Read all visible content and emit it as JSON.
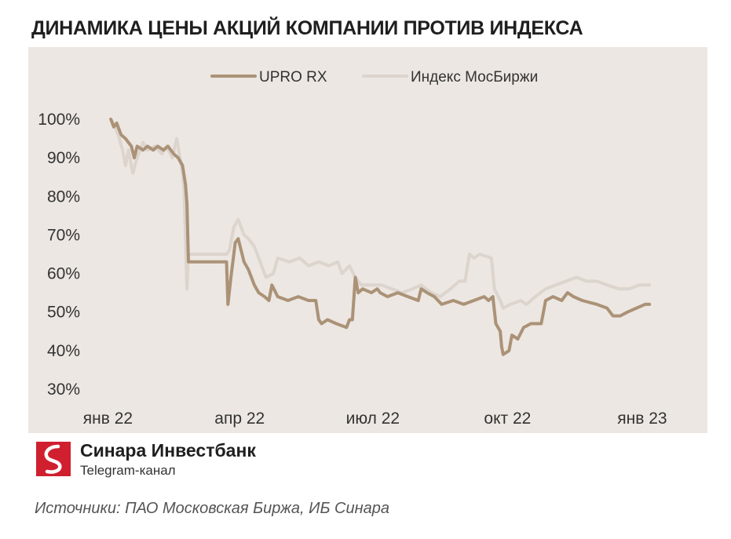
{
  "title": "ДИНАМИКА ЦЕНЫ АКЦИЙ КОМПАНИИ ПРОТИВ ИНДЕКСА",
  "brand": {
    "name": "Синара Инвестбанк",
    "subtitle": "Telegram-канал"
  },
  "source": "Источники: ПАО Московская Биржа, ИБ Синара",
  "colors": {
    "background": "#ece7e2",
    "upro": "#ab9277",
    "index": "#dcd4cd",
    "logo": "#d01f2f"
  },
  "chart_data": {
    "type": "line",
    "title": "ДИНАМИКА ЦЕНЫ АКЦИЙ КОМПАНИИ ПРОТИВ ИНДЕКСА",
    "xlabel": "",
    "ylabel": "",
    "ylim": [
      30,
      100
    ],
    "yticks": [
      "100%",
      "90%",
      "80%",
      "70%",
      "60%",
      "50%",
      "40%",
      "30%"
    ],
    "ytick_values": [
      100,
      90,
      80,
      70,
      60,
      50,
      40,
      30
    ],
    "xticks": [
      "янв 22",
      "апр 22",
      "июл 22",
      "окт 22",
      "янв 23"
    ],
    "xtick_dates": [
      "2022-01-01",
      "2022-04-01",
      "2022-07-01",
      "2022-10-01",
      "2023-01-01"
    ],
    "x_range": [
      "2021-12-28",
      "2023-01-15"
    ],
    "grid": false,
    "legend": "top-center",
    "series": [
      {
        "name": "UPRO RX",
        "points": [
          [
            "2022-01-03",
            100
          ],
          [
            "2022-01-05",
            98
          ],
          [
            "2022-01-07",
            99
          ],
          [
            "2022-01-10",
            96
          ],
          [
            "2022-01-13",
            95
          ],
          [
            "2022-01-17",
            93
          ],
          [
            "2022-01-19",
            90
          ],
          [
            "2022-01-21",
            93
          ],
          [
            "2022-01-25",
            92
          ],
          [
            "2022-01-28",
            93
          ],
          [
            "2022-02-01",
            92
          ],
          [
            "2022-02-04",
            93
          ],
          [
            "2022-02-08",
            92
          ],
          [
            "2022-02-11",
            93
          ],
          [
            "2022-02-15",
            91
          ],
          [
            "2022-02-18",
            90
          ],
          [
            "2022-02-21",
            88
          ],
          [
            "2022-02-23",
            83
          ],
          [
            "2022-02-24",
            78
          ],
          [
            "2022-02-25",
            63
          ],
          [
            "2022-03-23",
            63
          ],
          [
            "2022-03-24",
            52
          ],
          [
            "2022-03-26",
            59
          ],
          [
            "2022-03-29",
            68
          ],
          [
            "2022-03-31",
            69
          ],
          [
            "2022-04-04",
            63
          ],
          [
            "2022-04-07",
            61
          ],
          [
            "2022-04-11",
            57
          ],
          [
            "2022-04-14",
            55
          ],
          [
            "2022-04-18",
            54
          ],
          [
            "2022-04-21",
            53
          ],
          [
            "2022-04-23",
            57
          ],
          [
            "2022-04-27",
            54
          ],
          [
            "2022-05-04",
            53
          ],
          [
            "2022-05-11",
            54
          ],
          [
            "2022-05-18",
            53
          ],
          [
            "2022-05-23",
            53
          ],
          [
            "2022-05-25",
            48
          ],
          [
            "2022-05-27",
            47
          ],
          [
            "2022-05-31",
            48
          ],
          [
            "2022-06-06",
            47
          ],
          [
            "2022-06-13",
            46
          ],
          [
            "2022-06-15",
            48
          ],
          [
            "2022-06-17",
            48
          ],
          [
            "2022-06-19",
            59
          ],
          [
            "2022-06-21",
            55
          ],
          [
            "2022-06-24",
            56
          ],
          [
            "2022-06-30",
            55
          ],
          [
            "2022-07-04",
            56
          ],
          [
            "2022-07-06",
            55
          ],
          [
            "2022-07-11",
            54
          ],
          [
            "2022-07-18",
            55
          ],
          [
            "2022-07-25",
            54
          ],
          [
            "2022-08-01",
            53
          ],
          [
            "2022-08-03",
            56
          ],
          [
            "2022-08-07",
            55
          ],
          [
            "2022-08-12",
            54
          ],
          [
            "2022-08-17",
            52
          ],
          [
            "2022-08-25",
            53
          ],
          [
            "2022-09-01",
            52
          ],
          [
            "2022-09-08",
            53
          ],
          [
            "2022-09-15",
            54
          ],
          [
            "2022-09-18",
            53
          ],
          [
            "2022-09-21",
            54
          ],
          [
            "2022-09-23",
            47
          ],
          [
            "2022-09-26",
            45
          ],
          [
            "2022-09-27",
            41
          ],
          [
            "2022-09-28",
            39
          ],
          [
            "2022-10-02",
            40
          ],
          [
            "2022-10-04",
            44
          ],
          [
            "2022-10-08",
            43
          ],
          [
            "2022-10-12",
            46
          ],
          [
            "2022-10-17",
            47
          ],
          [
            "2022-10-24",
            47
          ],
          [
            "2022-10-27",
            53
          ],
          [
            "2022-11-01",
            54
          ],
          [
            "2022-11-07",
            53
          ],
          [
            "2022-11-11",
            55
          ],
          [
            "2022-11-15",
            54
          ],
          [
            "2022-11-21",
            53
          ],
          [
            "2022-12-01",
            52
          ],
          [
            "2022-12-08",
            51
          ],
          [
            "2022-12-12",
            49
          ],
          [
            "2022-12-17",
            49
          ],
          [
            "2022-12-22",
            50
          ],
          [
            "2022-12-28",
            51
          ],
          [
            "2023-01-03",
            52
          ],
          [
            "2023-01-06",
            52
          ]
        ]
      },
      {
        "name": "Индекс МосБиржи",
        "points": [
          [
            "2022-01-03",
            100
          ],
          [
            "2022-01-06",
            98
          ],
          [
            "2022-01-08",
            96
          ],
          [
            "2022-01-11",
            92
          ],
          [
            "2022-01-13",
            88
          ],
          [
            "2022-01-15",
            92
          ],
          [
            "2022-01-18",
            86
          ],
          [
            "2022-01-21",
            90
          ],
          [
            "2022-01-25",
            94
          ],
          [
            "2022-01-28",
            92
          ],
          [
            "2022-02-02",
            93
          ],
          [
            "2022-02-07",
            91
          ],
          [
            "2022-02-10",
            93
          ],
          [
            "2022-02-14",
            90
          ],
          [
            "2022-02-17",
            95
          ],
          [
            "2022-02-21",
            86
          ],
          [
            "2022-02-22",
            82
          ],
          [
            "2022-02-24",
            56
          ],
          [
            "2022-02-25",
            65
          ],
          [
            "2022-03-23",
            65
          ],
          [
            "2022-03-25",
            66
          ],
          [
            "2022-03-28",
            72
          ],
          [
            "2022-03-31",
            74
          ],
          [
            "2022-04-04",
            70
          ],
          [
            "2022-04-07",
            69
          ],
          [
            "2022-04-11",
            67
          ],
          [
            "2022-04-14",
            64
          ],
          [
            "2022-04-19",
            59
          ],
          [
            "2022-04-24",
            60
          ],
          [
            "2022-04-27",
            64
          ],
          [
            "2022-05-05",
            63
          ],
          [
            "2022-05-12",
            64
          ],
          [
            "2022-05-18",
            62
          ],
          [
            "2022-05-25",
            63
          ],
          [
            "2022-06-01",
            62
          ],
          [
            "2022-06-07",
            63
          ],
          [
            "2022-06-10",
            60
          ],
          [
            "2022-06-15",
            62
          ],
          [
            "2022-06-19",
            59
          ],
          [
            "2022-06-23",
            57
          ],
          [
            "2022-06-30",
            57
          ],
          [
            "2022-07-07",
            57
          ],
          [
            "2022-07-14",
            56
          ],
          [
            "2022-07-21",
            55
          ],
          [
            "2022-07-28",
            56
          ],
          [
            "2022-08-03",
            57
          ],
          [
            "2022-08-10",
            55
          ],
          [
            "2022-08-16",
            54
          ],
          [
            "2022-08-23",
            56
          ],
          [
            "2022-08-29",
            58
          ],
          [
            "2022-09-02",
            58
          ],
          [
            "2022-09-05",
            65
          ],
          [
            "2022-09-08",
            64
          ],
          [
            "2022-09-12",
            65
          ],
          [
            "2022-09-20",
            64
          ],
          [
            "2022-09-22",
            56
          ],
          [
            "2022-09-26",
            53
          ],
          [
            "2022-09-28",
            51
          ],
          [
            "2022-10-03",
            52
          ],
          [
            "2022-10-10",
            53
          ],
          [
            "2022-10-14",
            52
          ],
          [
            "2022-10-20",
            54
          ],
          [
            "2022-10-27",
            56
          ],
          [
            "2022-11-03",
            57
          ],
          [
            "2022-11-10",
            58
          ],
          [
            "2022-11-17",
            59
          ],
          [
            "2022-11-24",
            58
          ],
          [
            "2022-12-01",
            58
          ],
          [
            "2022-12-08",
            57
          ],
          [
            "2022-12-16",
            56
          ],
          [
            "2022-12-23",
            56
          ],
          [
            "2022-12-30",
            57
          ],
          [
            "2023-01-04",
            57
          ],
          [
            "2023-01-06",
            57
          ]
        ]
      }
    ]
  }
}
